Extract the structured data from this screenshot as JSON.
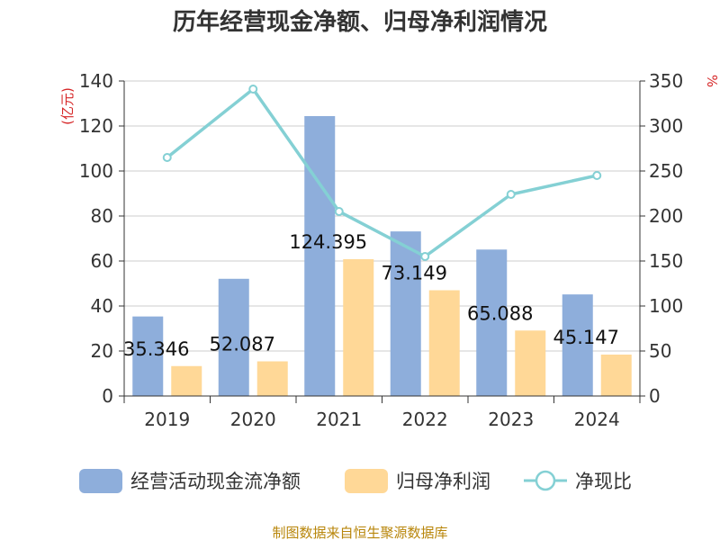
{
  "title": "历年经营现金净额、归母净利润情况",
  "source": "制图数据来自恒生聚源数据库",
  "chart_data": {
    "type": "bar",
    "categories": [
      "2019",
      "2020",
      "2021",
      "2022",
      "2023",
      "2024"
    ],
    "left_axis": {
      "unit_label": "(亿元)",
      "ylim": [
        0,
        140
      ],
      "ticks": [
        0,
        20,
        40,
        60,
        80,
        100,
        120,
        140
      ]
    },
    "right_axis": {
      "unit_label": "%",
      "ylim": [
        0,
        350
      ],
      "ticks": [
        0,
        50,
        100,
        150,
        200,
        250,
        300,
        350
      ]
    },
    "series": [
      {
        "name": "经营活动现金流净额",
        "type": "bar",
        "axis": "left",
        "color": "#8eaedb",
        "values": [
          35.346,
          52.087,
          124.395,
          73.149,
          65.088,
          45.147
        ],
        "data_labels": [
          "35.346",
          "52.087",
          "124.395",
          "73.149",
          "65.088",
          "45.147"
        ]
      },
      {
        "name": "归母净利润",
        "type": "bar",
        "axis": "left",
        "color": "#ffd897",
        "values": [
          13.3,
          15.4,
          60.8,
          47.0,
          29.1,
          18.4
        ]
      },
      {
        "name": "净现比",
        "type": "line",
        "axis": "right",
        "color": "#84d0d4",
        "values": [
          265,
          341,
          205,
          155,
          224,
          245
        ]
      }
    ],
    "grid": true,
    "legend_position": "bottom"
  }
}
